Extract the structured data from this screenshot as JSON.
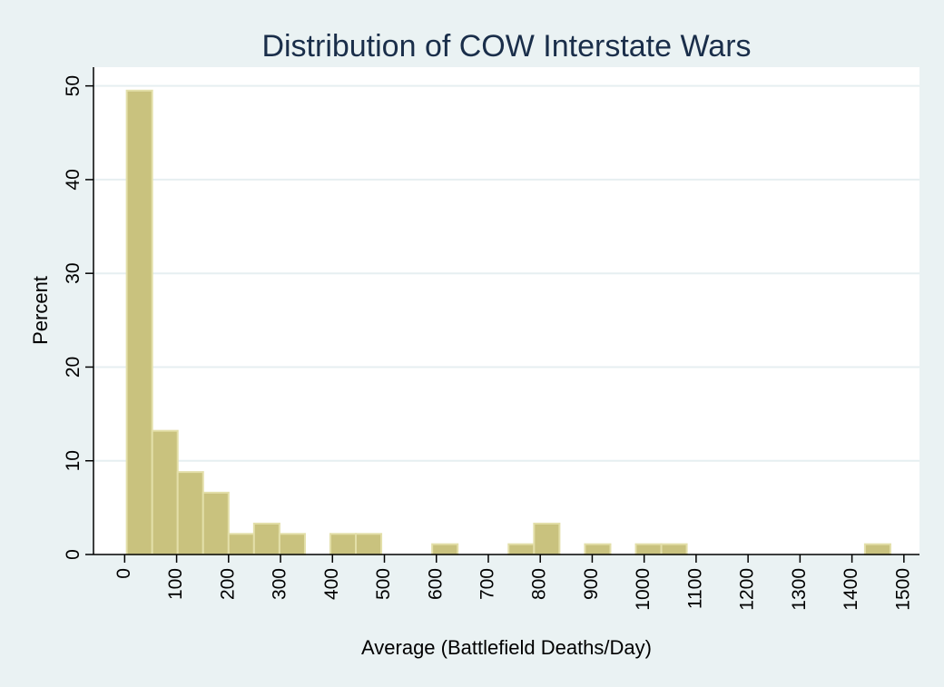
{
  "chart_data": {
    "type": "bar",
    "title": "Distribution of COW Interstate Wars",
    "xlabel": "Average (Battlefield Deaths/Day)",
    "ylabel": "Percent",
    "bin_width": 49,
    "xlim": [
      -60,
      1530
    ],
    "ylim": [
      0,
      52
    ],
    "x_ticks": [
      0,
      100,
      200,
      300,
      400,
      500,
      600,
      700,
      800,
      900,
      1000,
      1100,
      1200,
      1300,
      1400,
      1500
    ],
    "y_ticks": [
      0,
      10,
      20,
      30,
      40,
      50
    ],
    "grid": true,
    "bars": [
      {
        "x0": 4,
        "value": 49.5
      },
      {
        "x0": 53,
        "value": 13.2
      },
      {
        "x0": 102,
        "value": 8.8
      },
      {
        "x0": 151,
        "value": 6.6
      },
      {
        "x0": 200,
        "value": 2.2
      },
      {
        "x0": 249,
        "value": 3.3
      },
      {
        "x0": 298,
        "value": 2.2
      },
      {
        "x0": 396,
        "value": 2.2
      },
      {
        "x0": 445,
        "value": 2.2
      },
      {
        "x0": 592,
        "value": 1.1
      },
      {
        "x0": 739,
        "value": 1.1
      },
      {
        "x0": 788,
        "value": 3.3
      },
      {
        "x0": 886,
        "value": 1.1
      },
      {
        "x0": 984,
        "value": 1.1
      },
      {
        "x0": 1033,
        "value": 1.1
      },
      {
        "x0": 1425,
        "value": 1.1
      }
    ],
    "colors": {
      "bar_fill": "#c9c27e",
      "bar_stroke": "#e3dfa9",
      "plot_bg": "#ffffff",
      "page_bg": "#eaf2f3",
      "grid": "#e6eff1",
      "title": "#1a2e4a"
    }
  }
}
